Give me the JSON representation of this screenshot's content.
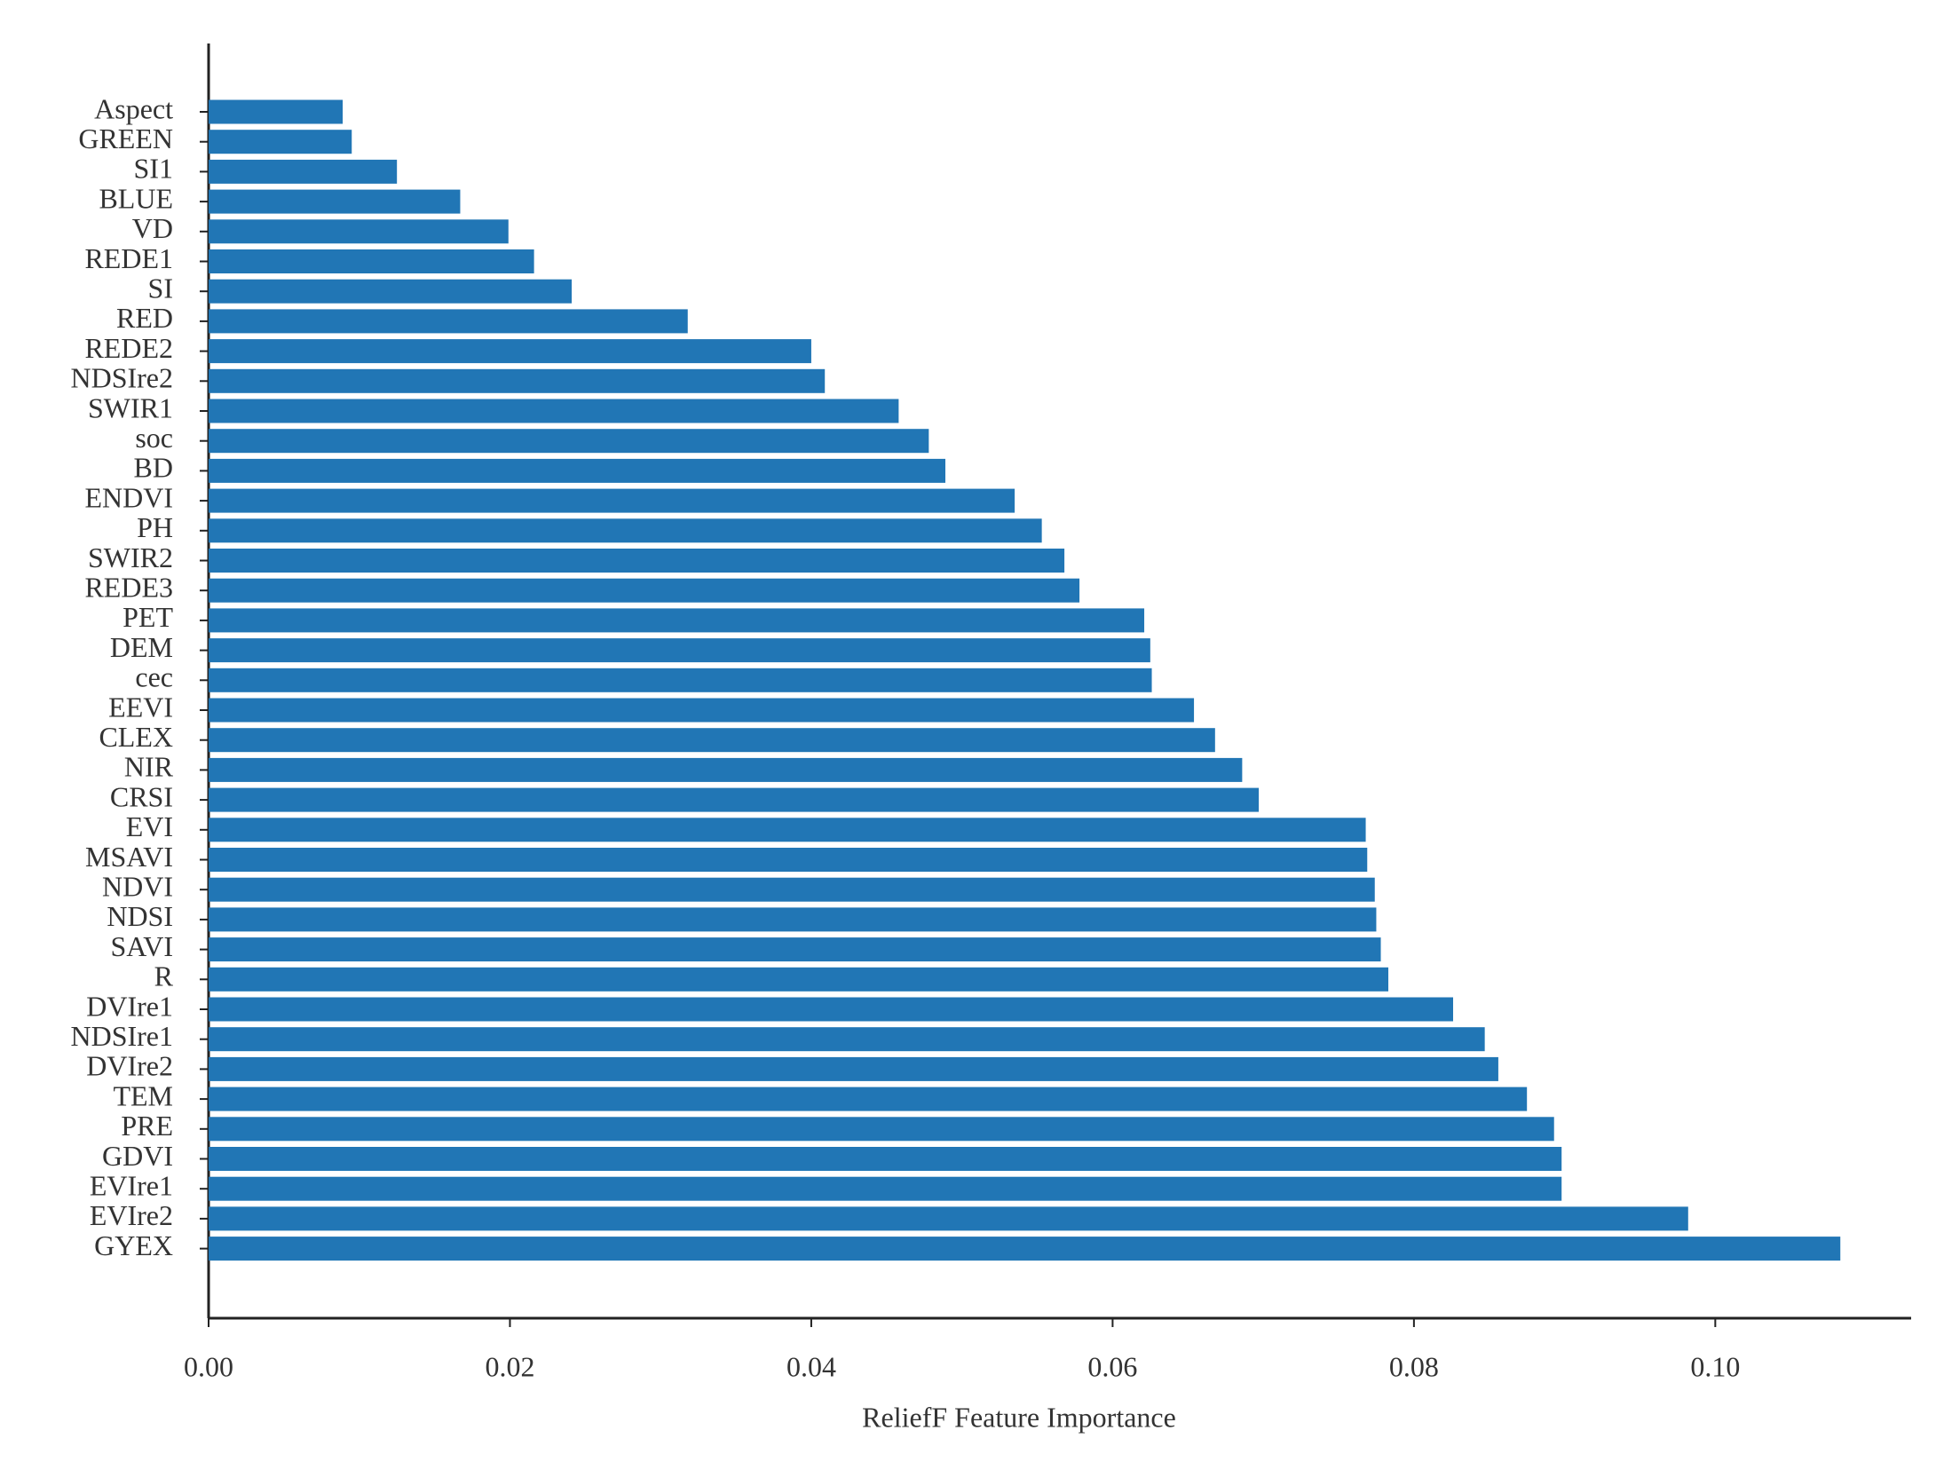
{
  "chart_data": {
    "type": "barh",
    "xlabel": "ReliefF Feature Importance",
    "categories": [
      "Aspect",
      "GREEN",
      "SI1",
      "BLUE",
      "VD",
      "REDE1",
      "SI",
      "RED",
      "REDE2",
      "NDSIre2",
      "SWIR1",
      "soc",
      "BD",
      "ENDVI",
      "PH",
      "SWIR2",
      "REDE3",
      "PET",
      "DEM",
      "cec",
      "EEVI",
      "CLEX",
      "NIR",
      "CRSI",
      "EVI",
      "MSAVI",
      "NDVI",
      "NDSI",
      "SAVI",
      "R",
      "DVIre1",
      "NDSIre1",
      "DVIre2",
      "TEM",
      "PRE",
      "GDVI",
      "EVIre1",
      "EVIre2",
      "GYEX"
    ],
    "values": [
      0.0089,
      0.0095,
      0.0125,
      0.0167,
      0.0199,
      0.0216,
      0.0241,
      0.0318,
      0.04,
      0.0409,
      0.0458,
      0.0478,
      0.0489,
      0.0535,
      0.0553,
      0.0568,
      0.0578,
      0.0621,
      0.0625,
      0.0626,
      0.0654,
      0.0668,
      0.0686,
      0.0697,
      0.0768,
      0.0769,
      0.0774,
      0.0775,
      0.0778,
      0.0783,
      0.0826,
      0.0847,
      0.0856,
      0.0875,
      0.0893,
      0.0898,
      0.0898,
      0.0982,
      0.1083
    ],
    "color": "#2176b5",
    "xlim": [
      0,
      0.113
    ],
    "xticks": [
      {
        "value": 0,
        "label": "0.00"
      },
      {
        "value": 0.02,
        "label": "0.02"
      },
      {
        "value": 0.04,
        "label": "0.04"
      },
      {
        "value": 0.06,
        "label": "0.06"
      },
      {
        "value": 0.08,
        "label": "0.08"
      },
      {
        "value": 0.1,
        "label": "0.10"
      }
    ],
    "grid": false
  }
}
